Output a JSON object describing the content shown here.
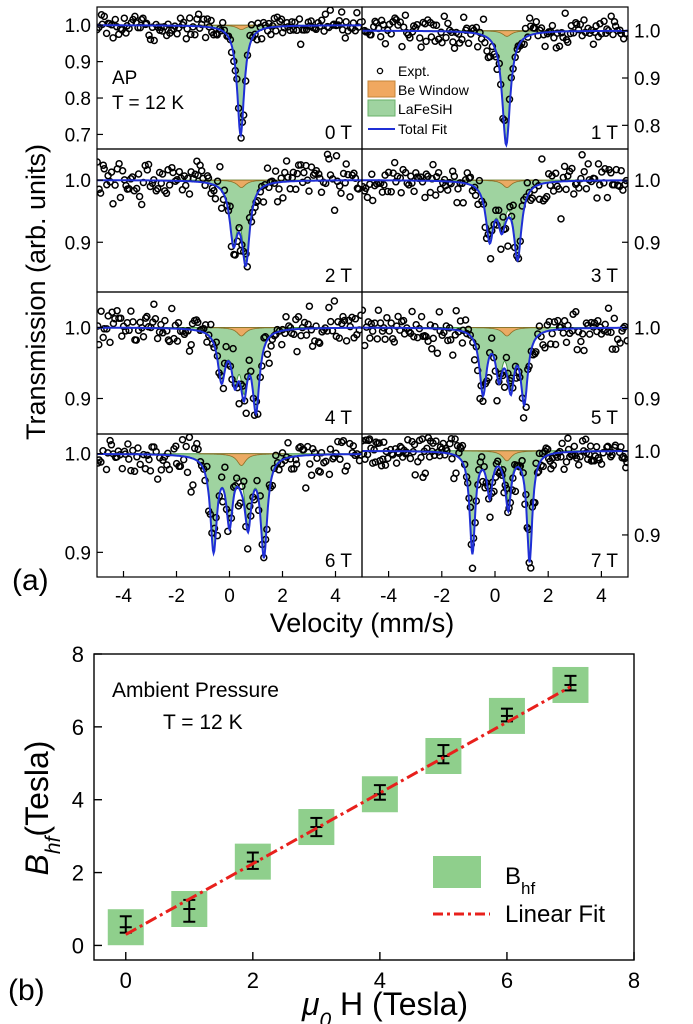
{
  "chart_data": [
    {
      "id": "a",
      "type": "scatter",
      "panel_label": "(a)",
      "ylabel": "Transmission (arb. units)",
      "xlabel": "Velocity (mm/s)",
      "xlim": [
        -5,
        5
      ],
      "x_ticks": [
        -4,
        -2,
        0,
        2,
        4
      ],
      "x_tick_labels": [
        "-4",
        "-2",
        "0",
        "2",
        "4"
      ],
      "annotation_lines": [
        "AP",
        "T = 12 K"
      ],
      "legend": [
        "Expt.",
        "Be Window",
        "LaFeSiH",
        "Total Fit"
      ],
      "colors": {
        "expt": "#000000",
        "be_window": "#f0a860",
        "lafesih": "#9fd3a0",
        "total_fit": "#1f2fd6"
      },
      "be_window": {
        "center": 0.45,
        "width": 0.4,
        "depth": 0.012
      },
      "panels": [
        {
          "field": "0 T",
          "ylim": [
            0.66,
            1.05
          ],
          "ticks": [
            0.7,
            0.8,
            0.9,
            1.0
          ],
          "tick_labels": [
            "0.7",
            "0.8",
            "0.9",
            "1.0"
          ],
          "tick_side": "left",
          "peaks": [
            [
              0.42,
              0.32,
              0.29
            ]
          ],
          "noise": 0.018
        },
        {
          "field": "1 T",
          "ylim": [
            0.75,
            1.05
          ],
          "ticks": [
            0.8,
            0.9,
            1.0
          ],
          "tick_labels": [
            "0.8",
            "0.9",
            "1.0"
          ],
          "tick_side": "right",
          "peaks": [
            [
              0.42,
              0.36,
              0.23
            ]
          ],
          "noise": 0.018
        },
        {
          "field": "2 T",
          "ylim": [
            0.82,
            1.05
          ],
          "ticks": [
            0.9,
            1.0
          ],
          "tick_labels": [
            "0.9",
            "1.0"
          ],
          "tick_side": "left",
          "peaks": [
            [
              0.15,
              0.35,
              0.09
            ],
            [
              0.62,
              0.35,
              0.12
            ]
          ],
          "noise": 0.016
        },
        {
          "field": "3 T",
          "ylim": [
            0.82,
            1.05
          ],
          "ticks": [
            0.9,
            1.0
          ],
          "tick_labels": [
            "0.9",
            "1.0"
          ],
          "tick_side": "right",
          "peaks": [
            [
              -0.2,
              0.35,
              0.09
            ],
            [
              0.25,
              0.35,
              0.06
            ],
            [
              0.85,
              0.35,
              0.12
            ]
          ],
          "noise": 0.016
        },
        {
          "field": "4 T",
          "ylim": [
            0.85,
            1.05
          ],
          "ticks": [
            0.9,
            1.0
          ],
          "tick_labels": [
            "0.9",
            "1.0"
          ],
          "tick_side": "left",
          "peaks": [
            [
              -0.3,
              0.35,
              0.07
            ],
            [
              0.2,
              0.3,
              0.06
            ],
            [
              0.55,
              0.3,
              0.07
            ],
            [
              1.0,
              0.32,
              0.11
            ]
          ],
          "noise": 0.014
        },
        {
          "field": "5 T",
          "ylim": [
            0.85,
            1.05
          ],
          "ticks": [
            0.9,
            1.0
          ],
          "tick_labels": [
            "0.9",
            "1.0"
          ],
          "tick_side": "right",
          "peaks": [
            [
              -0.45,
              0.32,
              0.09
            ],
            [
              0.15,
              0.3,
              0.06
            ],
            [
              0.6,
              0.3,
              0.07
            ],
            [
              1.1,
              0.32,
              0.1
            ]
          ],
          "noise": 0.014
        },
        {
          "field": "6 T",
          "ylim": [
            0.875,
            1.02
          ],
          "ticks": [
            0.9,
            1.0
          ],
          "tick_labels": [
            "0.9",
            "1.0"
          ],
          "tick_side": "left",
          "peaks": [
            [
              -0.6,
              0.3,
              0.095
            ],
            [
              0.0,
              0.3,
              0.065
            ],
            [
              0.7,
              0.3,
              0.065
            ],
            [
              1.3,
              0.3,
              0.1
            ]
          ],
          "noise": 0.011
        },
        {
          "field": "7 T",
          "ylim": [
            0.85,
            1.02
          ],
          "ticks": [
            0.9,
            1.0
          ],
          "tick_labels": [
            "0.9",
            "1.0"
          ],
          "tick_side": "right",
          "peaks": [
            [
              -0.85,
              0.25,
              0.12
            ],
            [
              -0.2,
              0.25,
              0.05
            ],
            [
              0.5,
              0.25,
              0.055
            ],
            [
              1.3,
              0.25,
              0.13
            ]
          ],
          "noise": 0.012
        }
      ]
    },
    {
      "id": "b",
      "type": "scatter",
      "panel_label": "(b)",
      "xlabel_symbol": "μ",
      "xlabel_sub": "0",
      "xlabel_rest": " H (Tesla)",
      "ylabel_symbol": "B",
      "ylabel_sub": "hf",
      "ylabel_rest": "(Tesla)",
      "xlim": [
        -0.5,
        8
      ],
      "ylim": [
        -0.4,
        8
      ],
      "x_ticks": [
        0,
        2,
        4,
        6,
        8
      ],
      "x_tick_labels": [
        "0",
        "2",
        "4",
        "6",
        "8"
      ],
      "y_ticks": [
        0,
        2,
        4,
        6,
        8
      ],
      "y_tick_labels": [
        "0",
        "2",
        "4",
        "6",
        "8"
      ],
      "annotation_lines": [
        "Ambient Pressure",
        "T = 12 K"
      ],
      "series": [
        {
          "name": "B",
          "name_sub": "hf",
          "x": [
            0,
            1,
            2,
            3,
            4,
            5,
            6,
            7
          ],
          "y": [
            0.5,
            1.0,
            2.3,
            3.25,
            4.15,
            5.2,
            6.3,
            7.15
          ],
          "y_err_hi": [
            0.8,
            1.25,
            2.55,
            3.5,
            4.4,
            5.5,
            6.5,
            7.4
          ],
          "y_err_lo": [
            0.35,
            0.65,
            2.1,
            3.0,
            4.0,
            5.0,
            6.15,
            7.0
          ],
          "color": "#8fcf8c"
        },
        {
          "name": "Linear Fit",
          "x": [
            0,
            7
          ],
          "y": [
            0.3,
            7.1
          ],
          "color": "#e8201c"
        }
      ]
    }
  ]
}
